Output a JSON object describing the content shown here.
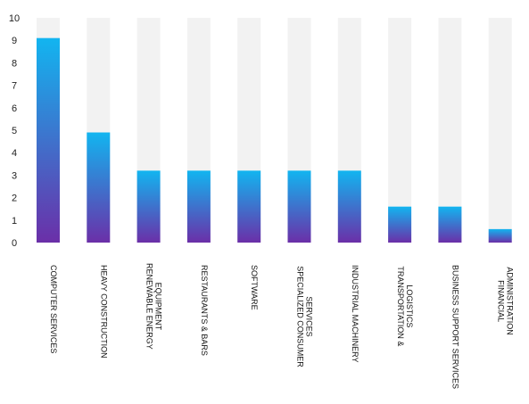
{
  "chart_data": {
    "type": "bar",
    "title": "",
    "xlabel": "",
    "ylabel": "",
    "ylim": [
      0,
      10
    ],
    "yticks": [
      0,
      1,
      2,
      3,
      4,
      5,
      6,
      7,
      8,
      9,
      10
    ],
    "grid": false,
    "legend": "none",
    "categories": [
      [
        "COMPUTER SERVICES"
      ],
      [
        "HEAVY CONSTRUCTION"
      ],
      [
        "RENEWABLE ENERGY",
        "EQUIPMENT"
      ],
      [
        "RESTAURANTS & BARS"
      ],
      [
        "SOFTWARE"
      ],
      [
        "SPECIALIZED CONSUMER",
        "SERVICES"
      ],
      [
        "INDUSTRIAL MACHINERY"
      ],
      [
        "TRANSPORTATION &",
        "LOGISTICS"
      ],
      [
        "BUSINESS SUPPORT SERVICES"
      ],
      [
        "FINANCIAL",
        "ADMINISTRATION"
      ]
    ],
    "values": [
      9.1,
      4.9,
      3.2,
      3.2,
      3.2,
      3.2,
      3.2,
      1.6,
      1.6,
      0.6
    ],
    "colors": {
      "bar_top": "#12b5f0",
      "bar_bottom": "#6b2fa8",
      "track": "#f2f2f2"
    }
  }
}
